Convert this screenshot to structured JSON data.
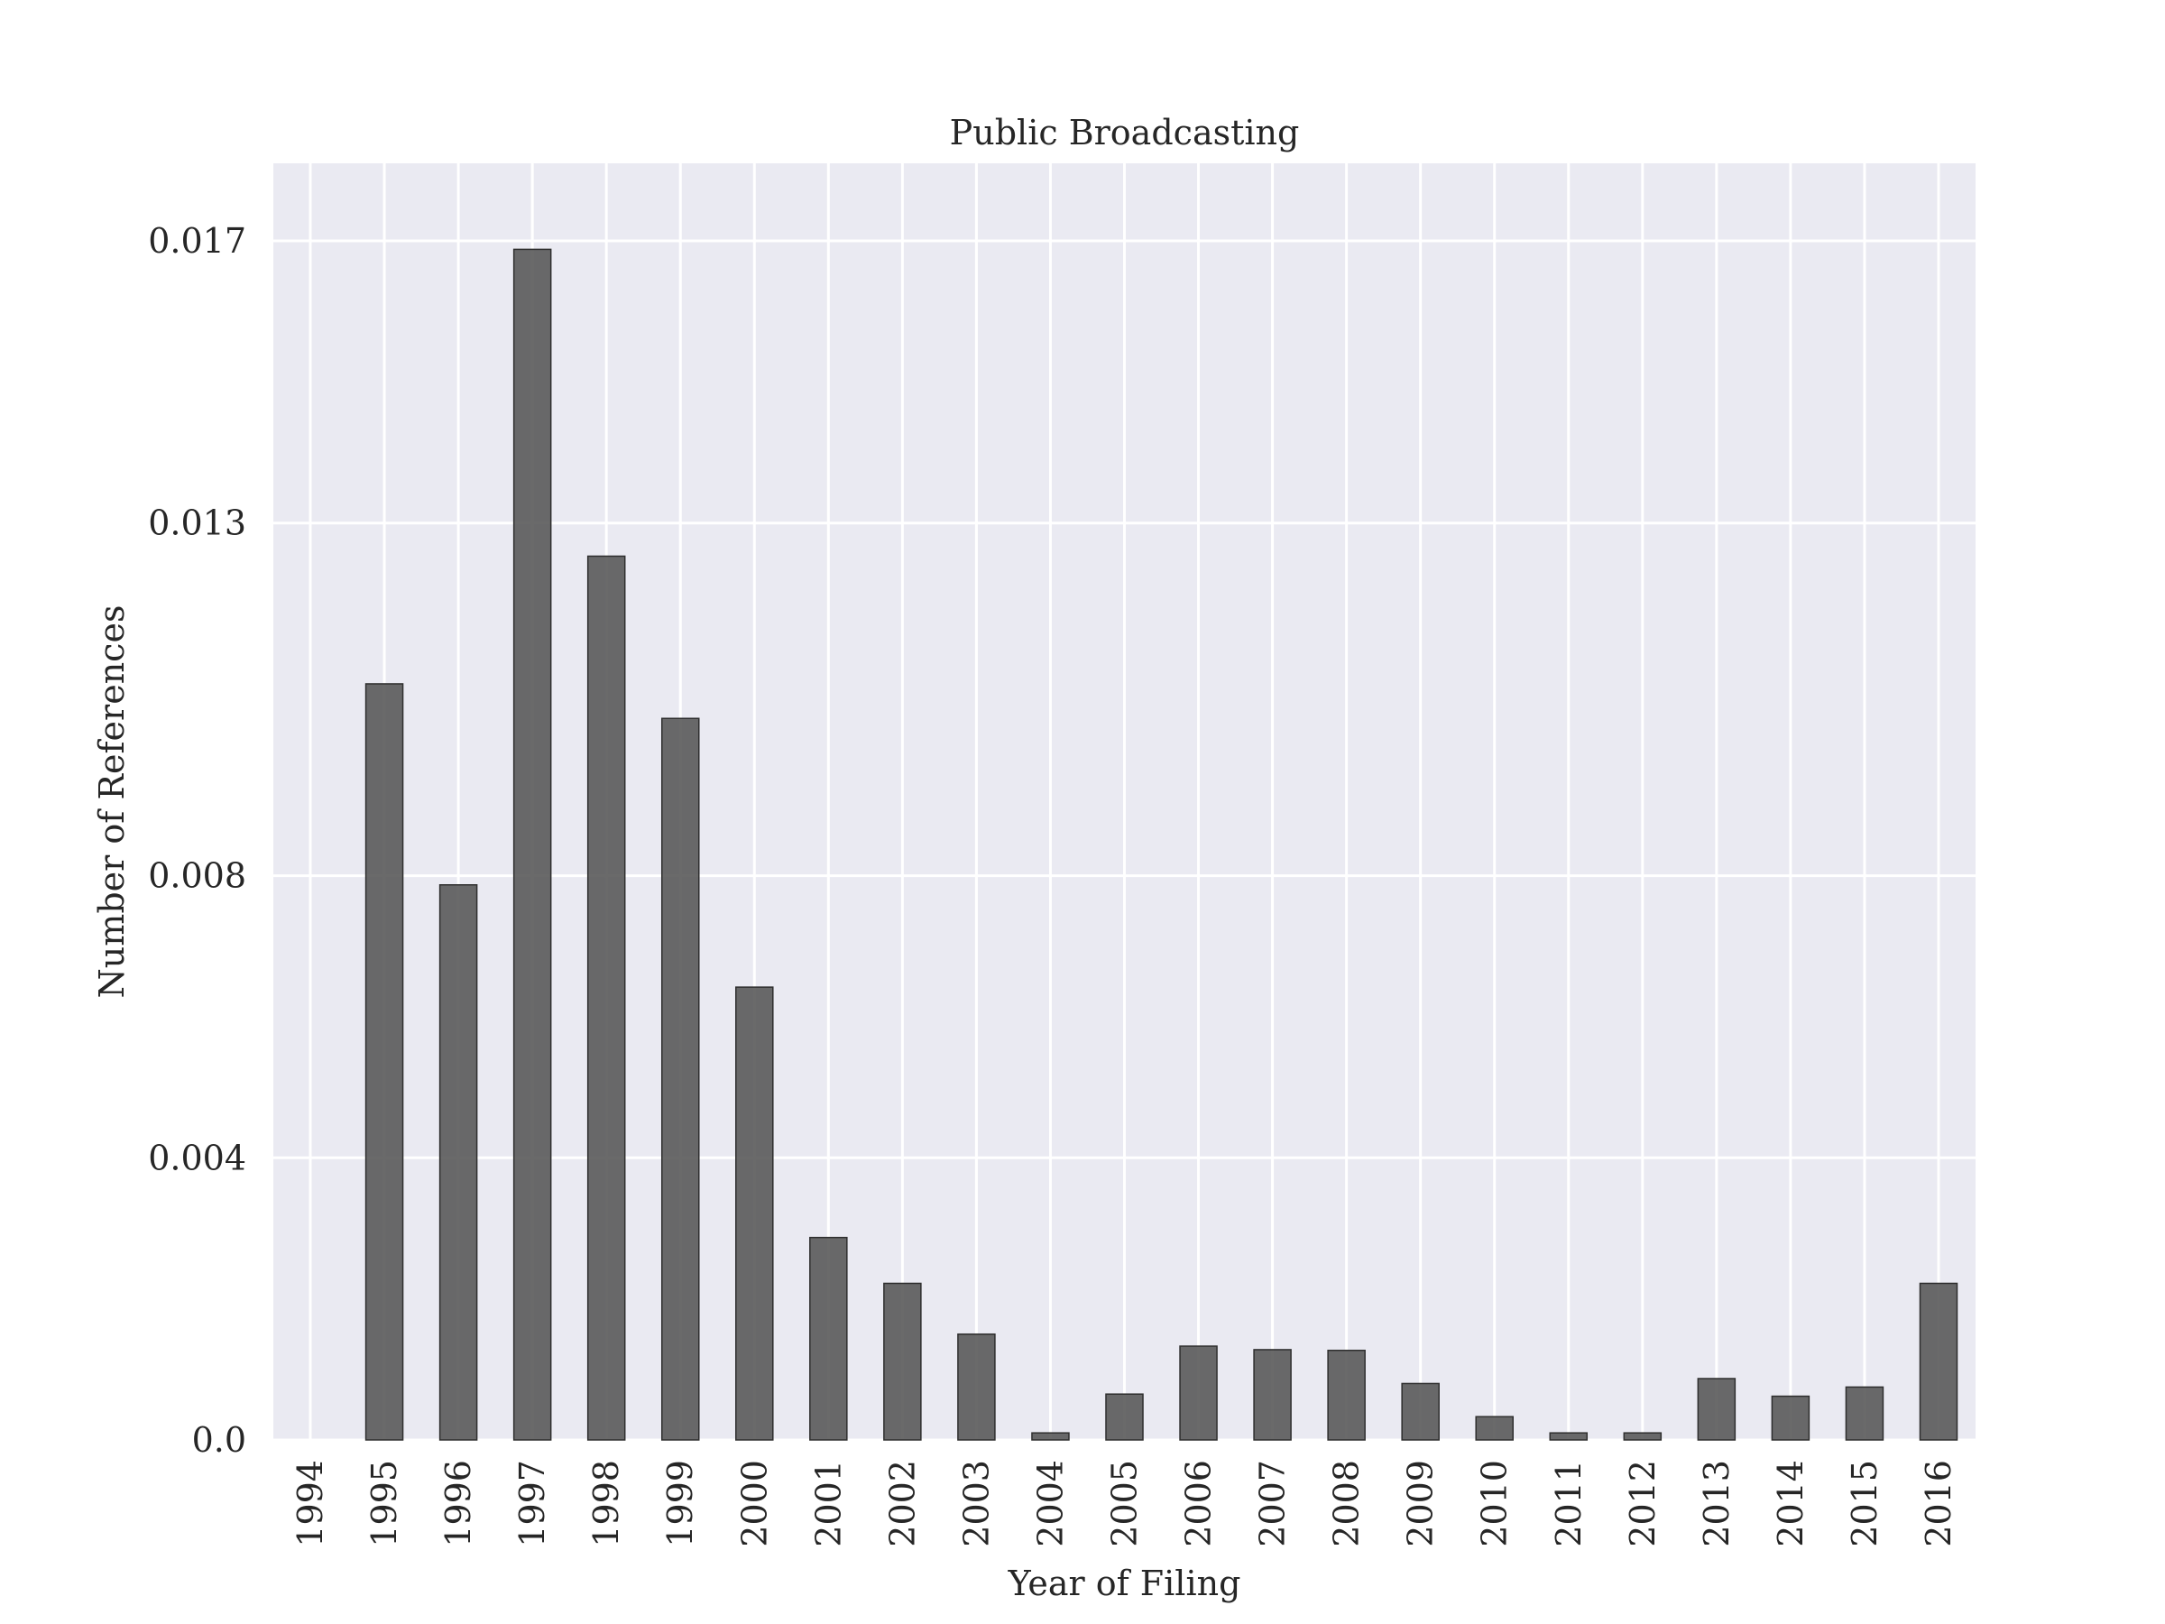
{
  "chart_data": {
    "type": "bar",
    "title": "Public Broadcasting",
    "xlabel": "Year of Filing",
    "ylabel": "Number of References",
    "categories": [
      "1994",
      "1995",
      "1996",
      "1997",
      "1998",
      "1999",
      "2000",
      "2001",
      "2002",
      "2003",
      "2004",
      "2005",
      "2006",
      "2007",
      "2008",
      "2009",
      "2010",
      "2011",
      "2012",
      "2013",
      "2014",
      "2015",
      "2016"
    ],
    "values": [
      0.0,
      0.01072,
      0.00787,
      0.01688,
      0.01253,
      0.01023,
      0.00642,
      0.00287,
      0.00222,
      0.0015,
      0.0001,
      0.00065,
      0.00133,
      0.00128,
      0.00127,
      0.0008,
      0.00033,
      0.0001,
      0.0001,
      0.00087,
      0.00062,
      0.00075,
      0.00222
    ],
    "yticks": [
      0.0,
      0.004,
      0.008,
      0.013,
      0.017
    ],
    "ytick_labels": [
      "0.0",
      "0.004",
      "0.008",
      "0.013",
      "0.017"
    ],
    "ylim": [
      0,
      0.0181
    ],
    "grid": true,
    "colors": {
      "bar": "#555555",
      "background": "#EAEAF2",
      "grid": "#ffffff"
    }
  }
}
